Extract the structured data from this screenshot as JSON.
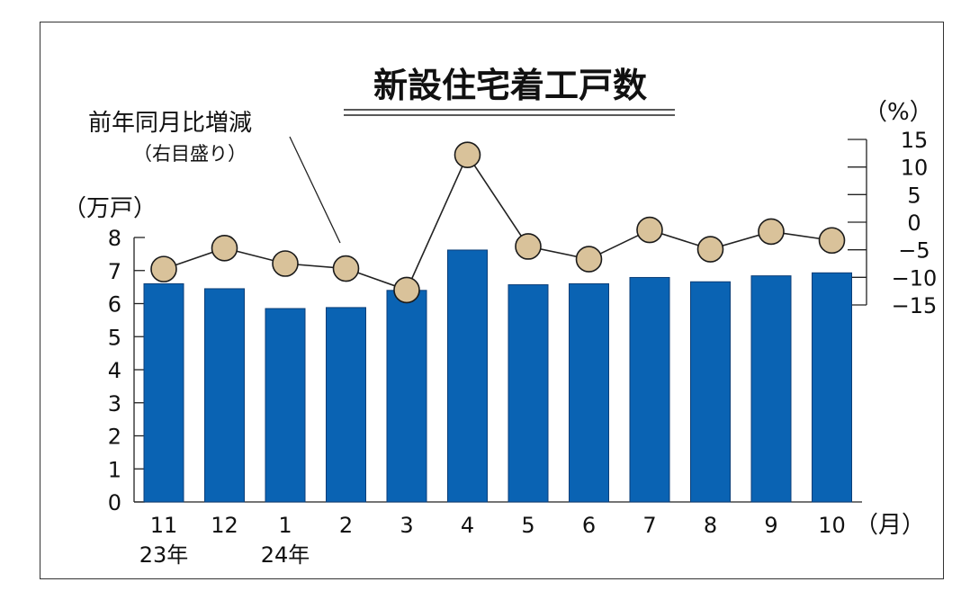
{
  "chart_data": {
    "type": "bar",
    "title": "新設住宅着工戸数",
    "categories": [
      "11",
      "12",
      "1",
      "2",
      "3",
      "4",
      "5",
      "6",
      "7",
      "8",
      "9",
      "10"
    ],
    "year_labels": [
      "23年",
      "",
      "24年",
      "",
      "",
      "",
      "",
      "",
      "",
      "",
      "",
      ""
    ],
    "x_unit": "（月）",
    "y_left": {
      "unit": "（万戸）",
      "range": [
        0,
        8
      ],
      "ticks": [
        "0",
        "1",
        "2",
        "3",
        "4",
        "5",
        "6",
        "7",
        "8"
      ]
    },
    "y_right": {
      "unit": "（%）",
      "range": [
        -15,
        15
      ],
      "ticks": [
        "15",
        "10",
        "5",
        "0",
        "−5",
        "−10",
        "−15"
      ]
    },
    "series": [
      {
        "type": "bar",
        "axis": "left",
        "values": [
          6.6,
          6.45,
          5.85,
          5.88,
          6.4,
          7.62,
          6.57,
          6.6,
          6.79,
          6.66,
          6.84,
          6.93
        ]
      },
      {
        "name": "前年同月比増減",
        "name_sub": "（右目盛り）",
        "type": "line",
        "axis": "right",
        "values": [
          -8.5,
          -4.7,
          -7.5,
          -8.4,
          -12.3,
          12.2,
          -4.4,
          -6.7,
          -1.4,
          -4.9,
          -1.7,
          -3.3
        ]
      }
    ],
    "colors": {
      "bar": "#0a63b3",
      "bar_edge": "#0b3e78",
      "marker": "#d9c29a",
      "marker_edge": "#1a1a1a",
      "line": "#222222"
    },
    "grid": false,
    "legend": "none"
  }
}
